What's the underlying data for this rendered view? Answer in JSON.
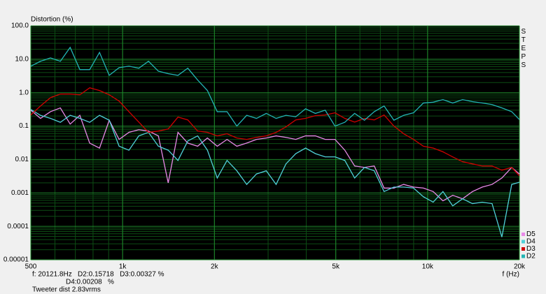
{
  "chart_data": {
    "type": "line",
    "ylabel": "Distortion (%)",
    "xlabel": "f (Hz)",
    "side_label": "STEPS",
    "annotations": [
      "f: 20121.8Hz   D2:0.15718   D3:0.00327 %",
      "D4:0.00208   %",
      "Tweeter dist 2.83vrms"
    ],
    "log_x": true,
    "log_y": true,
    "grid": true,
    "minor_grid": true,
    "legend": "lower right",
    "xlim": [
      500,
      20000
    ],
    "ylim": [
      1e-05,
      100
    ],
    "xticks": [
      500,
      {
        "value": 1000,
        "label": "1k"
      },
      {
        "value": 2000,
        "label": "2k"
      },
      {
        "value": 5000,
        "label": "5k"
      },
      {
        "value": 10000,
        "label": "10k"
      },
      {
        "value": 20000,
        "label": "20k"
      }
    ],
    "yticks": [
      {
        "value": 100,
        "label": "100.0"
      },
      {
        "value": 10,
        "label": "10.0"
      },
      {
        "value": 1,
        "label": "1.0"
      },
      0.1,
      0.01,
      0.001,
      0.0001,
      1e-05
    ],
    "x": [
      500,
      538,
      580,
      625,
      673,
      724,
      780,
      840,
      904,
      974,
      1049,
      1130,
      1216,
      1310,
      1411,
      1519,
      1636,
      1762,
      1897,
      2043,
      2200,
      2369,
      2552,
      2748,
      2959,
      3187,
      3432,
      3696,
      3980,
      4286,
      4616,
      4971,
      5353,
      5765,
      6208,
      6686,
      7200,
      7754,
      8350,
      8992,
      9684,
      10430,
      11230,
      12090,
      13020,
      14030,
      15110,
      16270,
      17520,
      18870,
      20000
    ],
    "series": [
      {
        "name": "D5",
        "color": "#e88ae8",
        "values": [
          0.3,
          0.17,
          0.27,
          0.35,
          0.115,
          0.21,
          0.031,
          0.022,
          0.15,
          0.04,
          0.065,
          0.078,
          0.071,
          0.051,
          0.002,
          0.065,
          0.031,
          0.025,
          0.044,
          0.025,
          0.04,
          0.025,
          0.031,
          0.04,
          0.044,
          0.051,
          0.046,
          0.04,
          0.051,
          0.051,
          0.04,
          0.04,
          0.019,
          0.0064,
          0.0058,
          0.0064,
          0.0014,
          0.0014,
          0.0018,
          0.0015,
          0.0014,
          0.0011,
          0.00058,
          0.00085,
          0.00067,
          0.0011,
          0.0015,
          0.0018,
          0.0028,
          0.0058,
          0.0037
        ]
      },
      {
        "name": "D4",
        "color": "#4fd0d8",
        "values": [
          0.315,
          0.21,
          0.17,
          0.13,
          0.21,
          0.17,
          0.13,
          0.21,
          0.15,
          0.025,
          0.019,
          0.051,
          0.065,
          0.025,
          0.019,
          0.0094,
          0.036,
          0.051,
          0.019,
          0.0028,
          0.0094,
          0.0046,
          0.0018,
          0.0037,
          0.0046,
          0.0018,
          0.0074,
          0.015,
          0.022,
          0.015,
          0.012,
          0.012,
          0.0094,
          0.0028,
          0.0058,
          0.0046,
          0.0011,
          0.0015,
          0.0015,
          0.0014,
          0.00077,
          0.00053,
          0.0011,
          0.00041,
          0.00067,
          0.00048,
          0.00053,
          0.00048,
          4.8e-05,
          0.0018,
          0.00208
        ]
      },
      {
        "name": "D3",
        "color": "#d00000",
        "values": [
          0.215,
          0.4,
          0.71,
          0.91,
          0.91,
          0.865,
          1.4,
          1.16,
          0.865,
          0.56,
          0.27,
          0.132,
          0.065,
          0.071,
          0.082,
          0.186,
          0.153,
          0.071,
          0.065,
          0.051,
          0.059,
          0.044,
          0.04,
          0.046,
          0.051,
          0.065,
          0.095,
          0.153,
          0.17,
          0.205,
          0.215,
          0.25,
          0.17,
          0.132,
          0.17,
          0.153,
          0.215,
          0.1,
          0.059,
          0.04,
          0.025,
          0.022,
          0.017,
          0.012,
          0.0086,
          0.0074,
          0.0064,
          0.0064,
          0.0048,
          0.0058,
          0.00327
        ]
      },
      {
        "name": "D2",
        "color": "#22b4b4",
        "values": [
          6.2,
          8.7,
          11,
          8.7,
          22.7,
          4.9,
          4.9,
          16,
          3.3,
          5.6,
          6.2,
          5.4,
          8.7,
          4.4,
          3.7,
          3.3,
          5.4,
          2.4,
          1.16,
          0.27,
          0.27,
          0.1,
          0.21,
          0.17,
          0.24,
          0.17,
          0.21,
          0.19,
          0.33,
          0.24,
          0.3,
          0.1,
          0.13,
          0.24,
          0.15,
          0.27,
          0.4,
          0.15,
          0.21,
          0.25,
          0.49,
          0.52,
          0.62,
          0.49,
          0.62,
          0.54,
          0.49,
          0.44,
          0.35,
          0.27,
          0.15718
        ]
      }
    ]
  }
}
